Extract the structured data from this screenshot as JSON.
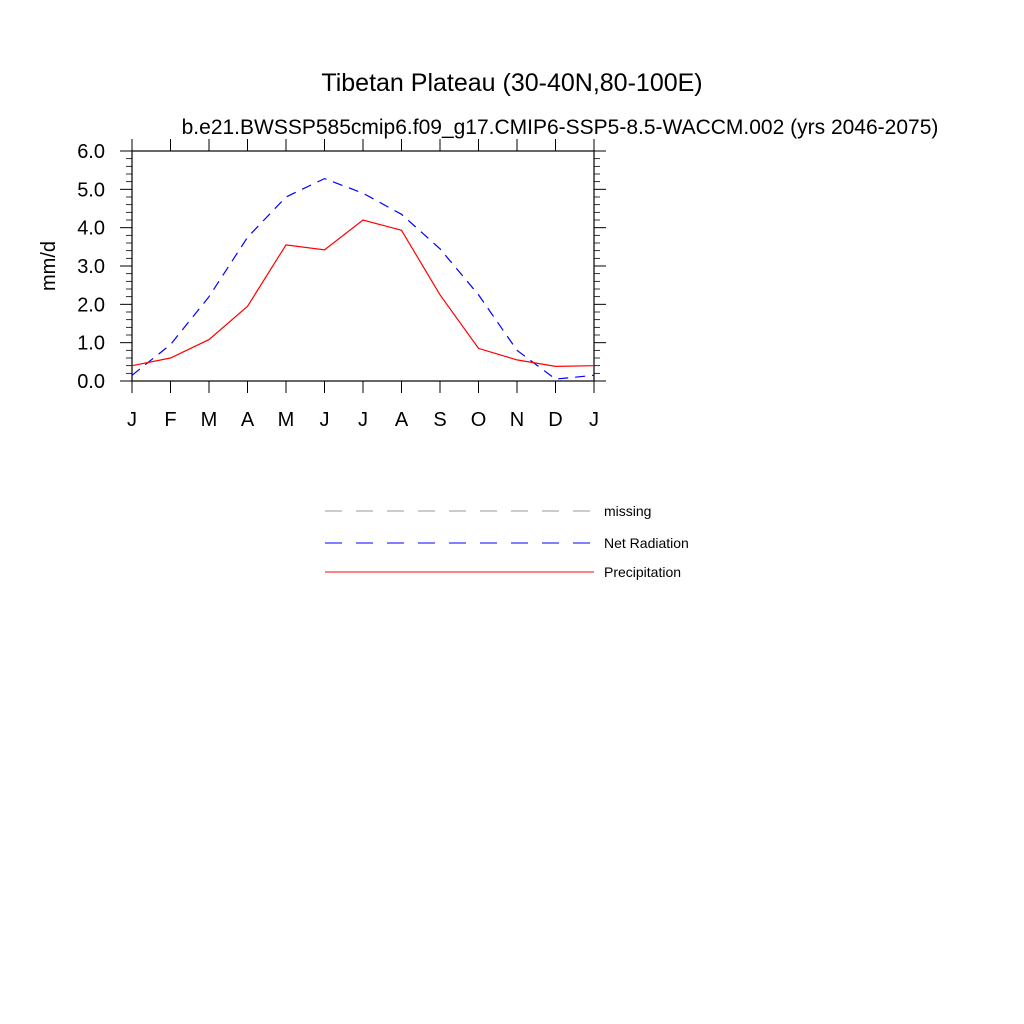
{
  "chart_data": {
    "type": "line",
    "title": "Tibetan Plateau (30-40N,80-100E)",
    "subtitle": "b.e21.BWSSP585cmip6.f09_g17.CMIP6-SSP5-8.5-WACCM.002 (yrs 2046-2075)",
    "ylabel": "mm/d",
    "xlabel": "",
    "categories": [
      "J",
      "F",
      "M",
      "A",
      "M",
      "J",
      "J",
      "A",
      "S",
      "O",
      "N",
      "D",
      "J"
    ],
    "ylim": [
      0,
      6
    ],
    "yticks": [
      "0.0",
      "1.0",
      "2.0",
      "3.0",
      "4.0",
      "5.0",
      "6.0"
    ],
    "grid": false,
    "series": [
      {
        "name": "Net Radiation",
        "color": "#0000ff",
        "dash": "dashed",
        "values": [
          0.15,
          0.95,
          2.2,
          3.75,
          4.8,
          5.28,
          4.9,
          4.35,
          3.45,
          2.25,
          0.8,
          0.05,
          0.15
        ]
      },
      {
        "name": "Precipitation",
        "color": "#ff0000",
        "dash": "solid",
        "values": [
          0.4,
          0.6,
          1.08,
          1.95,
          3.55,
          3.42,
          4.2,
          3.93,
          2.25,
          0.85,
          0.55,
          0.38,
          0.4
        ]
      }
    ],
    "legend": {
      "placement": "below",
      "items": [
        {
          "label": "missing",
          "color": "#999999",
          "dash": "dashed"
        },
        {
          "label": "Net Radiation",
          "color": "#0000ff",
          "dash": "dashed"
        },
        {
          "label": "Precipitation",
          "color": "#ff0000",
          "dash": "solid"
        }
      ]
    }
  }
}
